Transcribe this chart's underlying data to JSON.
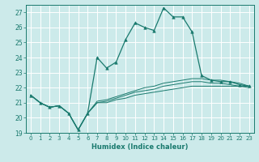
{
  "title": "",
  "xlabel": "Humidex (Indice chaleur)",
  "bg_color": "#cceaea",
  "line_color": "#1a7a6e",
  "grid_color": "#ffffff",
  "xlim": [
    -0.5,
    23.5
  ],
  "ylim": [
    19,
    27.5
  ],
  "yticks": [
    19,
    20,
    21,
    22,
    23,
    24,
    25,
    26,
    27
  ],
  "xticks": [
    0,
    1,
    2,
    3,
    4,
    5,
    6,
    7,
    8,
    9,
    10,
    11,
    12,
    13,
    14,
    15,
    16,
    17,
    18,
    19,
    20,
    21,
    22,
    23
  ],
  "series": [
    [
      21.5,
      21.0,
      20.7,
      20.8,
      20.3,
      19.2,
      20.3,
      24.0,
      23.3,
      23.7,
      25.2,
      26.3,
      26.0,
      25.8,
      27.3,
      26.7,
      26.7,
      25.7,
      22.8,
      22.5,
      22.4,
      22.4,
      22.2,
      22.1
    ],
    [
      21.5,
      21.0,
      20.7,
      20.8,
      20.3,
      19.2,
      20.3,
      21.1,
      21.2,
      21.4,
      21.6,
      21.8,
      22.0,
      22.1,
      22.3,
      22.4,
      22.5,
      22.6,
      22.6,
      22.5,
      22.5,
      22.4,
      22.3,
      22.1
    ],
    [
      21.5,
      21.0,
      20.7,
      20.8,
      20.3,
      19.2,
      20.3,
      21.0,
      21.1,
      21.3,
      21.5,
      21.7,
      21.8,
      21.9,
      22.1,
      22.2,
      22.3,
      22.4,
      22.4,
      22.3,
      22.3,
      22.2,
      22.1,
      22.1
    ],
    [
      21.5,
      21.0,
      20.7,
      20.8,
      20.3,
      19.2,
      20.3,
      21.0,
      21.0,
      21.2,
      21.3,
      21.5,
      21.6,
      21.7,
      21.8,
      21.9,
      22.0,
      22.1,
      22.1,
      22.1,
      22.1,
      22.1,
      22.1,
      22.0
    ]
  ]
}
